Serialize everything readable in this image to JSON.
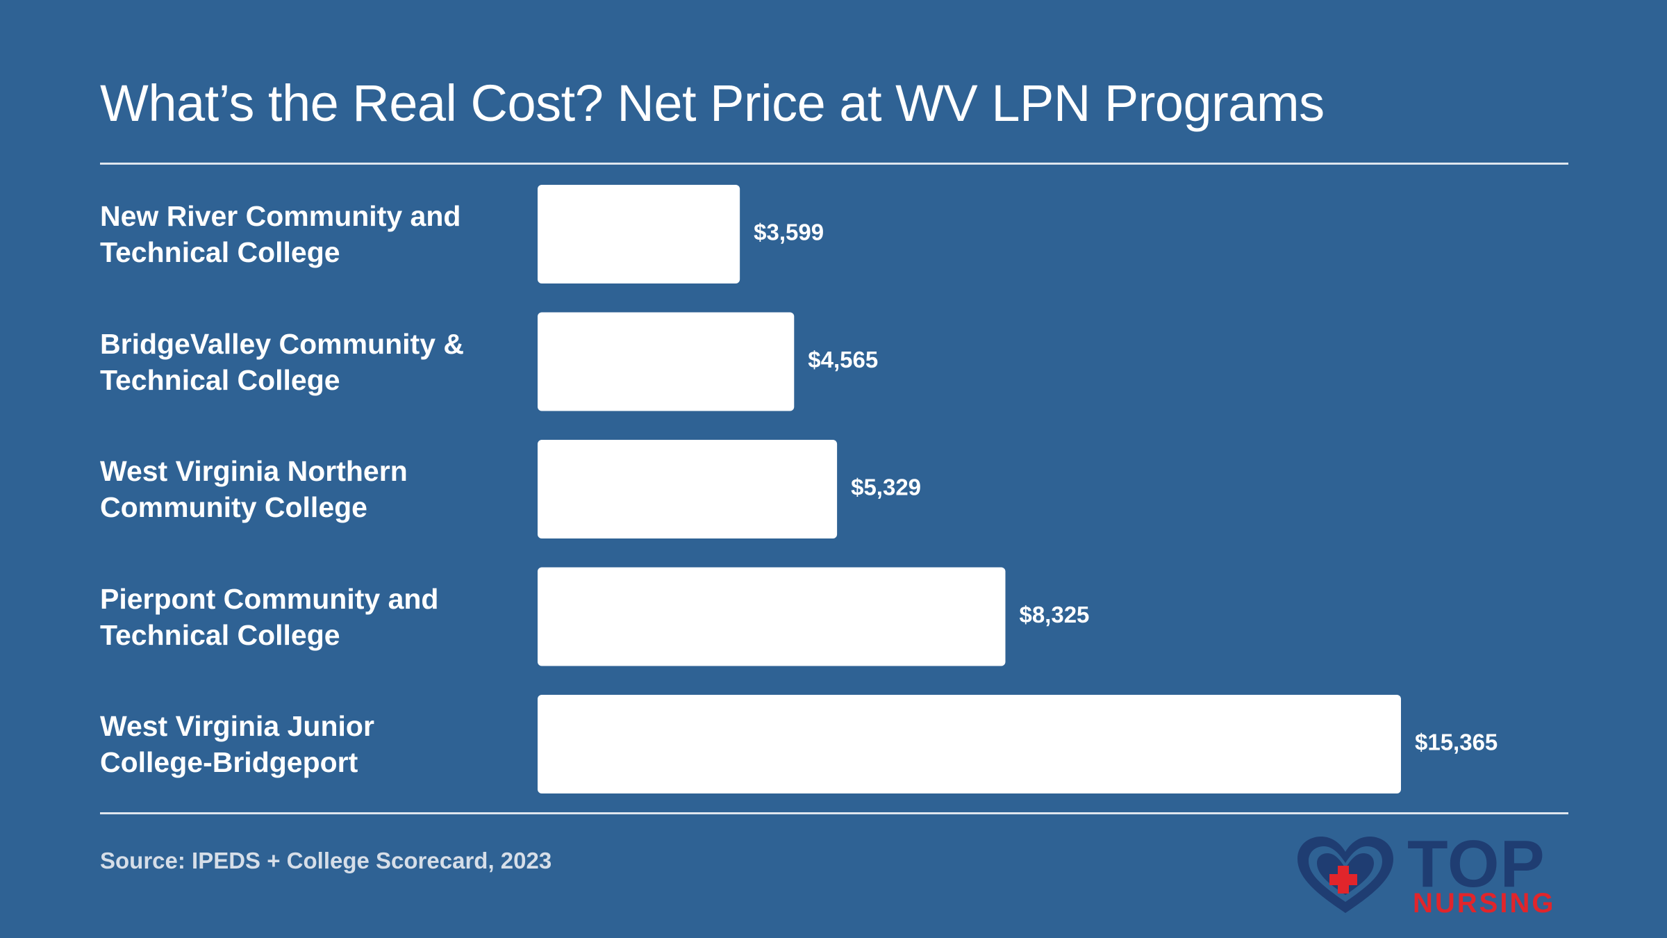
{
  "title": "What’s the Real Cost? Net Price at WV LPN Programs",
  "source": "Source: IPEDS + College Scorecard, 2023",
  "logo": {
    "line1": "TOP",
    "line2": "NURSING",
    "heart_color": "#1f3d72",
    "cross_color": "#e1252b"
  },
  "colors": {
    "background": "#2f6294",
    "bar": "#ffffff",
    "text": "#ffffff"
  },
  "chart_data": {
    "type": "bar",
    "orientation": "horizontal",
    "categories": [
      [
        "New River Community and",
        "Technical College"
      ],
      [
        "BridgeValley Community &",
        "Technical College"
      ],
      [
        "West Virginia Northern",
        "Community College"
      ],
      [
        "Pierpont Community and",
        "Technical College"
      ],
      [
        "West Virginia Junior",
        "College-Bridgeport"
      ]
    ],
    "values": [
      3599,
      4565,
      5329,
      8325,
      15365
    ],
    "value_labels": [
      "$3,599",
      "$4,565",
      "$5,329",
      "$8,325",
      "$15,365"
    ],
    "title": "What’s the Real Cost? Net Price at WV LPN Programs",
    "xlabel": "",
    "ylabel": "",
    "grid": false
  }
}
